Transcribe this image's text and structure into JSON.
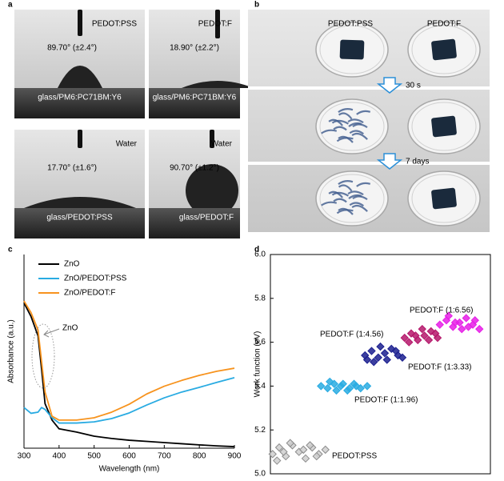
{
  "panel_labels": [
    "a",
    "b",
    "c",
    "d"
  ],
  "panel_a": {
    "cells": [
      {
        "liquid": "PEDOT:PSS",
        "angle": "89.70° (±2.4°)",
        "substrate": "glass/PM6:PC71BM:Y6"
      },
      {
        "liquid": "PEDOT:F",
        "angle": "18.90° (±2.2°)",
        "substrate": "glass/PM6:PC71BM:Y6"
      },
      {
        "liquid": "Water",
        "angle": "17.70° (±1.6°)",
        "substrate": "glass/PEDOT:PSS"
      },
      {
        "liquid": "Water",
        "angle": "90.70° (±1.2°)",
        "substrate": "glass/PEDOT:F"
      }
    ]
  },
  "panel_b": {
    "columns": [
      "PEDOT:PSS",
      "PEDOT:F"
    ],
    "steps": [
      "30 s",
      "7 days"
    ]
  },
  "chart_data": [
    {
      "type": "line",
      "xlabel": "Wavelength (nm)",
      "ylabel": "Absorbance (a.u.)",
      "xlim": [
        300,
        900
      ],
      "xticks": [
        300,
        400,
        500,
        600,
        700,
        800,
        900
      ],
      "ylim": [
        0,
        1
      ],
      "legend": "upper left",
      "annotation": "ZnO",
      "x": [
        300,
        320,
        340,
        350,
        360,
        380,
        400,
        450,
        500,
        550,
        600,
        650,
        700,
        750,
        800,
        850,
        900
      ],
      "series": [
        {
          "name": "ZnO",
          "color": "#000000",
          "values": [
            0.75,
            0.68,
            0.58,
            0.41,
            0.23,
            0.145,
            0.1,
            0.083,
            0.062,
            0.05,
            0.041,
            0.035,
            0.029,
            0.023,
            0.017,
            0.012,
            0.008
          ]
        },
        {
          "name": "ZnO/PEDOT:PSS",
          "color": "#29abe2",
          "values": [
            0.21,
            0.18,
            0.186,
            0.21,
            0.2,
            0.157,
            0.13,
            0.13,
            0.136,
            0.153,
            0.182,
            0.223,
            0.26,
            0.29,
            0.314,
            0.34,
            0.364
          ]
        },
        {
          "name": "ZnO/PEDOT:F",
          "color": "#f7931e",
          "values": [
            0.76,
            0.7,
            0.61,
            0.45,
            0.29,
            0.165,
            0.145,
            0.145,
            0.157,
            0.186,
            0.227,
            0.28,
            0.32,
            0.35,
            0.376,
            0.397,
            0.413
          ]
        }
      ]
    },
    {
      "type": "scatter",
      "ylabel": "Work function (eV)",
      "xlim": [
        0,
        1
      ],
      "ylim": [
        5,
        6
      ],
      "yticks": [
        {
          "value": 5,
          "label": "5.0"
        },
        5.2,
        5.4,
        5.6,
        5.8,
        {
          "value": 6,
          "label": "6.0"
        }
      ],
      "series": [
        {
          "name": "PEDOT:PSS",
          "color": "#8c8c8c",
          "x": [
            0.01,
            0.04,
            0.07,
            0.1,
            0.13,
            0.16,
            0.19,
            0.22,
            0.25,
            0.03,
            0.09,
            0.15,
            0.21,
            0.06,
            0.18
          ],
          "values": [
            5.09,
            5.12,
            5.08,
            5.13,
            5.1,
            5.07,
            5.12,
            5.09,
            5.11,
            5.06,
            5.14,
            5.11,
            5.08,
            5.1,
            5.13
          ]
        },
        {
          "name": "PEDOT:F (1:1.96)",
          "color": "#29abe2",
          "x": [
            0.23,
            0.26,
            0.29,
            0.32,
            0.35,
            0.38,
            0.41,
            0.44,
            0.27,
            0.33,
            0.39,
            0.3,
            0.36
          ],
          "values": [
            5.4,
            5.39,
            5.41,
            5.4,
            5.38,
            5.41,
            5.39,
            5.4,
            5.42,
            5.41,
            5.4,
            5.38,
            5.39
          ]
        },
        {
          "name": "PEDOT:F (1:3.33)",
          "color": "#1b1f8f",
          "x": [
            0.43,
            0.46,
            0.49,
            0.52,
            0.55,
            0.58,
            0.6,
            0.47,
            0.53,
            0.57,
            0.5,
            0.44
          ],
          "values": [
            5.54,
            5.56,
            5.53,
            5.55,
            5.57,
            5.54,
            5.53,
            5.51,
            5.52,
            5.56,
            5.58,
            5.52
          ]
        },
        {
          "name": "PEDOT:F (1:4.56)",
          "color": "#b5176b",
          "x": [
            0.61,
            0.64,
            0.67,
            0.7,
            0.73,
            0.76,
            0.63,
            0.69,
            0.75,
            0.66,
            0.72
          ],
          "values": [
            5.62,
            5.64,
            5.61,
            5.63,
            5.65,
            5.62,
            5.6,
            5.66,
            5.64,
            5.63,
            5.61
          ]
        },
        {
          "name": "PEDOT:F (1:6.56)",
          "color": "#e61ee6",
          "x": [
            0.77,
            0.8,
            0.83,
            0.86,
            0.89,
            0.92,
            0.95,
            0.81,
            0.87,
            0.93,
            0.84,
            0.9
          ],
          "values": [
            5.68,
            5.7,
            5.67,
            5.69,
            5.71,
            5.68,
            5.66,
            5.72,
            5.66,
            5.7,
            5.69,
            5.67
          ]
        }
      ]
    }
  ]
}
